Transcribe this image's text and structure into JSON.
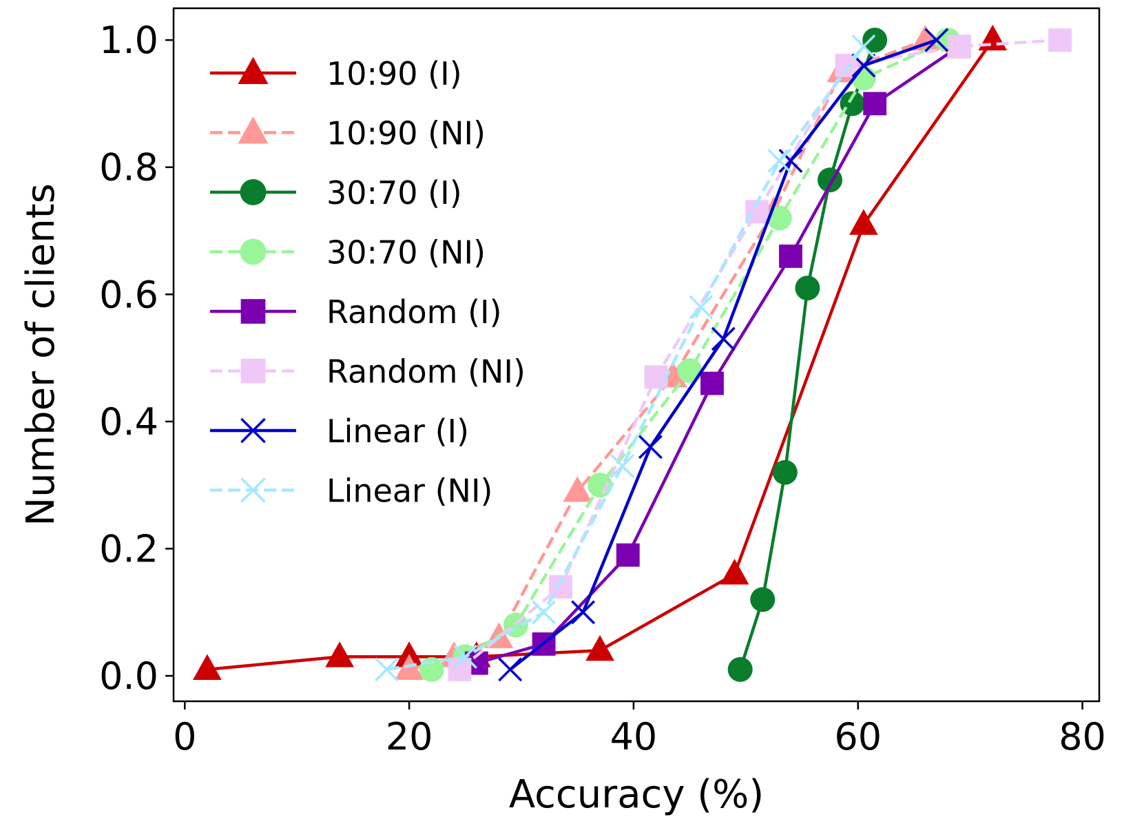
{
  "chart_data": {
    "type": "line",
    "title": "",
    "xlabel": "Accuracy (%)",
    "ylabel": "Number of clients",
    "xlim": [
      -1,
      81.5
    ],
    "ylim": [
      -0.04,
      1.05
    ],
    "xticks": [
      0,
      20,
      40,
      60,
      80
    ],
    "xtick_labels": [
      "0",
      "20",
      "40",
      "60",
      "80"
    ],
    "yticks": [
      0.0,
      0.2,
      0.4,
      0.6,
      0.8,
      1.0
    ],
    "ytick_labels": [
      "0.0",
      "0.2",
      "0.4",
      "0.6",
      "0.8",
      "1.0"
    ],
    "grid": false,
    "legend_position": "upper-left",
    "series": [
      {
        "name": "10:90 (I)",
        "color": "#cc0000",
        "dashed": false,
        "marker": "triangle",
        "x": [
          2,
          13.8,
          20,
          26,
          37,
          49,
          60.5,
          72
        ],
        "y": [
          0.01,
          0.03,
          0.03,
          0.03,
          0.04,
          0.16,
          0.71,
          1.0
        ]
      },
      {
        "name": "10:90 (NI)",
        "color": "#ff9896",
        "dashed": true,
        "marker": "triangle",
        "x": [
          20,
          24,
          28,
          35,
          43.5,
          52.5,
          58.5,
          66
        ],
        "y": [
          0.01,
          0.03,
          0.06,
          0.29,
          0.47,
          0.73,
          0.95,
          1.0
        ]
      },
      {
        "name": "30:70 (I)",
        "color": "#0a7d2c",
        "dashed": false,
        "marker": "circle",
        "x": [
          49.5,
          51.5,
          53.5,
          55.5,
          57.5,
          59.5,
          61.5
        ],
        "y": [
          0.01,
          0.12,
          0.32,
          0.61,
          0.78,
          0.9,
          1.0
        ]
      },
      {
        "name": "30:70 (NI)",
        "color": "#98f598",
        "dashed": true,
        "marker": "circle",
        "x": [
          22,
          25,
          29.5,
          37,
          45,
          53,
          60.5,
          68
        ],
        "y": [
          0.01,
          0.03,
          0.08,
          0.3,
          0.48,
          0.72,
          0.94,
          1.0
        ]
      },
      {
        "name": "Random (I)",
        "color": "#7a00b0",
        "dashed": false,
        "marker": "square",
        "x": [
          26,
          32,
          39.5,
          47,
          54,
          61.5,
          69
        ],
        "y": [
          0.02,
          0.05,
          0.19,
          0.46,
          0.66,
          0.9,
          0.99
        ]
      },
      {
        "name": "Random (NI)",
        "color": "#f0c8f8",
        "dashed": true,
        "marker": "square",
        "x": [
          24.5,
          33.5,
          42,
          51,
          59,
          69,
          78
        ],
        "y": [
          0.01,
          0.14,
          0.47,
          0.73,
          0.96,
          0.99,
          1.0
        ]
      },
      {
        "name": "Linear (I)",
        "color": "#0000cc",
        "dashed": false,
        "marker": "x",
        "x": [
          29,
          35.5,
          41.5,
          48,
          54,
          60.5,
          67
        ],
        "y": [
          0.01,
          0.1,
          0.36,
          0.53,
          0.81,
          0.96,
          1.0
        ]
      },
      {
        "name": "Linear (NI)",
        "color": "#a6e8ff",
        "dashed": true,
        "marker": "x",
        "x": [
          18,
          25,
          32,
          39,
          46,
          53,
          60.5
        ],
        "y": [
          0.01,
          0.03,
          0.1,
          0.33,
          0.58,
          0.81,
          0.99
        ]
      }
    ]
  }
}
